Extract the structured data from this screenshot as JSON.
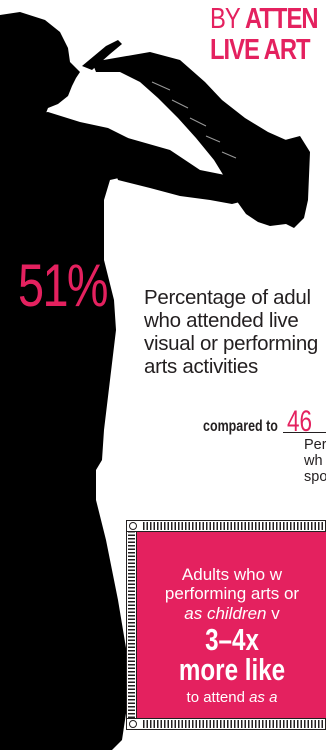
{
  "headline": {
    "line1_prefix": "BY",
    "line1_bold": "ATTEN",
    "line2": "LIVE ART"
  },
  "stat": {
    "percent": "51%",
    "description": "Percentage of adul\nwho attended live\nvisual or performing\narts activities",
    "compared_label": "compared to",
    "compared_value": "46",
    "compared_description": "Per\nwh\nspo"
  },
  "panel": {
    "line1": "Adults who w",
    "line2": "performing arts or",
    "line3_italic": "as children",
    "line3_rest": "v",
    "multiplier": "3–4x",
    "more_likely": "more like",
    "attend_prefix": "to attend",
    "attend_italic": "as a",
    "accent_color": "#e4215f"
  },
  "colors": {
    "accent": "#e4215f",
    "silhouette": "#000000",
    "text": "#231f20"
  },
  "icons": {
    "figure": "saxophone-player-silhouette-icon"
  }
}
